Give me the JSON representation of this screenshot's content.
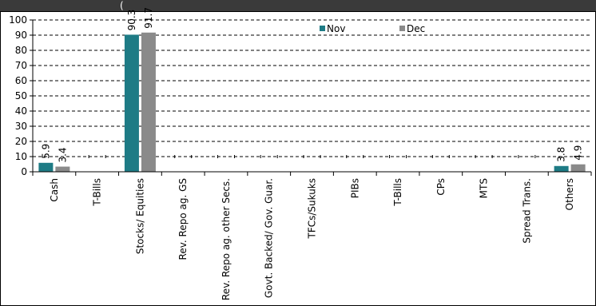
{
  "header": {
    "text": "("
  },
  "chart_data": {
    "type": "bar",
    "categories": [
      "Cash",
      "T-Bills",
      "Stocks/ Equities",
      "Rev. Repo ag. GS",
      "Rev. Repo ag. other Secs.",
      "Govt. Backed/ Gov. Guar.",
      "TFCs/Sukuks",
      "PIBs",
      "T-Bills",
      "CPs",
      "MTS",
      "Spread Trans.",
      "Others"
    ],
    "series": [
      {
        "name": "Nov",
        "color": "#1e7b85",
        "values": [
          5.9,
          0,
          90.3,
          0,
          0,
          0,
          0,
          0,
          0,
          0,
          0,
          0,
          3.8
        ]
      },
      {
        "name": "Dec",
        "color": "#8a8a8a",
        "values": [
          3.4,
          0,
          91.7,
          0,
          0,
          0,
          0,
          0,
          0,
          0,
          0,
          0,
          4.9
        ]
      }
    ],
    "data_labels": [
      [
        "5.9",
        "",
        "90.3",
        "",
        "",
        "",
        "",
        "",
        "",
        "",
        "",
        "",
        "3.8"
      ],
      [
        "3.4",
        "",
        "91.7",
        "",
        "",
        "",
        "",
        "",
        "",
        "",
        "",
        "",
        "4.9"
      ]
    ],
    "ylim": [
      0,
      100
    ],
    "yticks": [
      "0",
      "10",
      "20",
      "30",
      "40",
      "50",
      "60",
      "70",
      "80",
      "90",
      "100"
    ],
    "grid": true,
    "legend": "top-center"
  }
}
